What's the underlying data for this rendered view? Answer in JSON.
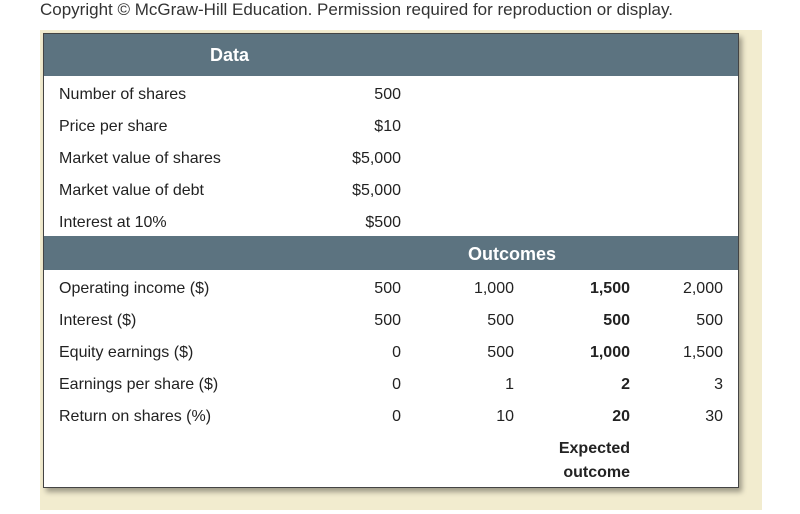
{
  "copyright": "Copyright © McGraw-Hill Education. Permission required for reproduction or display.",
  "data_header": "Data",
  "data_rows": [
    {
      "label": "Number of shares",
      "value": "500"
    },
    {
      "label": "Price per share",
      "value": "$10"
    },
    {
      "label": "Market value of shares",
      "value": "$5,000"
    },
    {
      "label": "Market value of debt",
      "value": "$5,000"
    },
    {
      "label": "Interest at 10%",
      "value": "$500"
    }
  ],
  "outcomes_header": "Outcomes",
  "outcome_rows": [
    {
      "label": "Operating income ($)",
      "values": [
        "500",
        "1,000",
        "1,500",
        "2,000"
      ]
    },
    {
      "label": "Interest ($)",
      "values": [
        "500",
        "500",
        "500",
        "500"
      ]
    },
    {
      "label": "Equity earnings ($)",
      "values": [
        "0",
        "500",
        "1,000",
        "1,500"
      ]
    },
    {
      "label": "Earnings per share ($)",
      "values": [
        "0",
        "1",
        "2",
        "3"
      ]
    },
    {
      "label": "Return on shares (%)",
      "values": [
        "0",
        "10",
        "20",
        "30"
      ]
    }
  ],
  "expected_note": [
    "Expected",
    "outcome"
  ]
}
